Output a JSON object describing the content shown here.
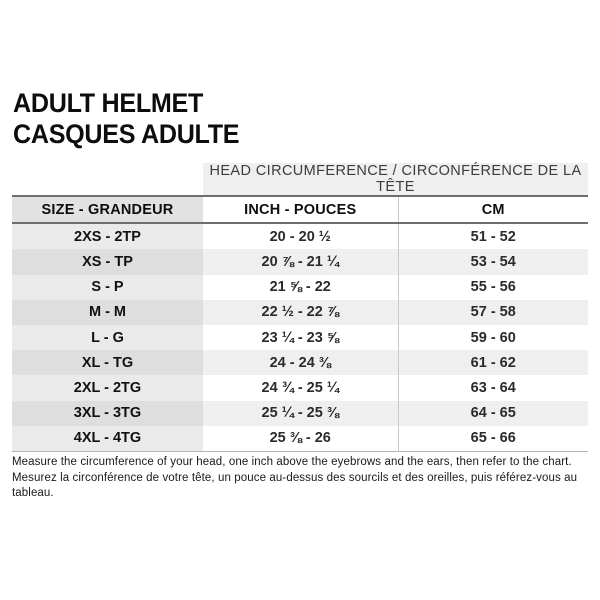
{
  "title": {
    "line1": "ADULT HELMET",
    "line2": "CASQUES ADULTE"
  },
  "table": {
    "span_header": "HEAD CIRCUMFERENCE / CIRCONFÉRENCE DE LA TÊTE",
    "columns": {
      "size": "SIZE - GRANDEUR",
      "inch": "INCH - POUCES",
      "cm": "CM"
    },
    "rows": [
      {
        "size": "2XS - 2TP",
        "inch": "20 - 20 ½",
        "cm": "51 - 52"
      },
      {
        "size": "XS - TP",
        "inch": "20 ⅞ - 21 ¼",
        "cm": "53 - 54"
      },
      {
        "size": "S - P",
        "inch": "21 ⅝ - 22",
        "cm": "55 - 56"
      },
      {
        "size": "M - M",
        "inch": "22 ½ - 22 ⅞",
        "cm": "57 - 58"
      },
      {
        "size": "L - G",
        "inch": "23 ¼ - 23 ⅝",
        "cm": "59 - 60"
      },
      {
        "size": "XL - TG",
        "inch": "24 - 24 ⅜",
        "cm": "61 - 62"
      },
      {
        "size": "2XL - 2TG",
        "inch": "24 ¾ - 25 ¼",
        "cm": "63 - 64"
      },
      {
        "size": "3XL - 3TG",
        "inch": "25 ¼ - 25 ⅜",
        "cm": "64 - 65"
      },
      {
        "size": "4XL - 4TG",
        "inch": "25 ⅜ - 26",
        "cm": "65 - 66"
      }
    ]
  },
  "footer": {
    "line1": "Measure the circumference of your head, one inch above the eyebrows and the ears, then refer to the chart.",
    "line2": "Mesurez la circonférence de votre tête, un pouce au-dessus des sourcils et des oreilles, puis référez-vous au tableau."
  },
  "colors": {
    "head_row_bg": "#efefef",
    "size_header_bg": "#e2e2e2",
    "size_cell_odd": "#eaeaea",
    "size_cell_even": "#dedede",
    "data_even_bg": "#efefef",
    "rule_dark": "#6e6e6e",
    "rule_light": "#c9c9c9"
  }
}
